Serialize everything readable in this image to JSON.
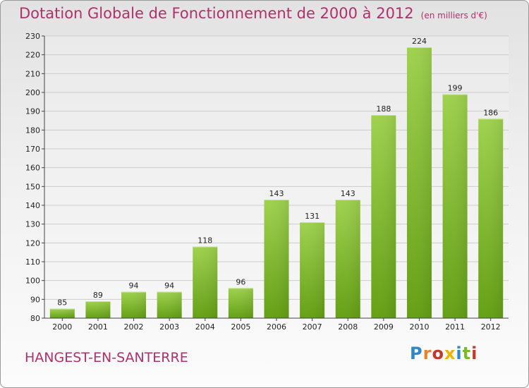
{
  "chart_data": {
    "type": "bar",
    "title": "Dotation Globale de Fonctionnement de 2000 à 2012",
    "subtitle": "(en milliers d'€)",
    "categories": [
      "2000",
      "2001",
      "2002",
      "2003",
      "2004",
      "2005",
      "2006",
      "2007",
      "2008",
      "2009",
      "2010",
      "2011",
      "2012"
    ],
    "values": [
      85,
      89,
      94,
      94,
      118,
      96,
      143,
      131,
      143,
      188,
      224,
      199,
      186
    ],
    "ylim": [
      80,
      230
    ],
    "yticks": [
      80,
      90,
      100,
      110,
      120,
      130,
      140,
      150,
      160,
      170,
      180,
      190,
      200,
      210,
      220,
      230
    ],
    "grid": true,
    "bar_color": "#7ab82e",
    "bar_color_light": "#9ccc4a"
  },
  "footer": {
    "location": "HANGEST-EN-SANTERRE",
    "logo_text": "Proxiti",
    "logo_colors": [
      "#2f86c8",
      "#e8832a",
      "#c0392b",
      "#f0b400",
      "#2f86c8",
      "#7ab82e",
      "#c0392b"
    ]
  },
  "colors": {
    "title": "#b0306a",
    "grid": "#cccccc"
  }
}
